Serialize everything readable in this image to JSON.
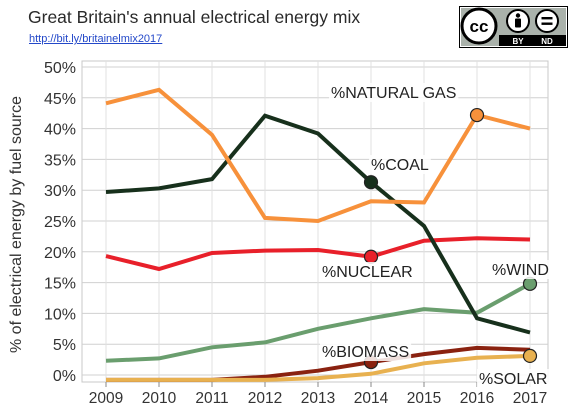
{
  "header": {
    "title": "Great Britain's annual electrical energy mix",
    "link": "http://bit.ly/britainelmix2017",
    "license_labels": [
      "cc",
      "BY",
      "ND"
    ]
  },
  "chart_data": {
    "type": "line",
    "title": "Great Britain's annual electrical energy mix",
    "ylabel": "% of electrical energy by fuel source",
    "xlabel": "",
    "x": [
      2009,
      2010,
      2011,
      2012,
      2013,
      2014,
      2015,
      2016,
      2017
    ],
    "ylim": [
      0,
      50
    ],
    "yticks": [
      "0%",
      "5%",
      "10%",
      "15%",
      "20%",
      "25%",
      "30%",
      "35%",
      "40%",
      "45%",
      "50%"
    ],
    "xticks": [
      "2009",
      "2010",
      "2011",
      "2012",
      "2013",
      "2014",
      "2015",
      "2016",
      "2017"
    ],
    "grid": true,
    "legend": "inline labels",
    "series": [
      {
        "name": "%NATURAL GAS",
        "color": "#f7913b",
        "values": [
          44.1,
          46.3,
          39.0,
          25.5,
          25.0,
          28.2,
          28.0,
          42.2,
          40.0
        ],
        "marker_index": 7
      },
      {
        "name": "%COAL",
        "color": "#17301c",
        "values": [
          29.7,
          30.3,
          31.8,
          42.1,
          39.2,
          31.3,
          24.2,
          9.2,
          6.9
        ],
        "marker_index": 5
      },
      {
        "name": "%NUCLEAR",
        "color": "#e8202a",
        "values": [
          19.3,
          17.2,
          19.8,
          20.2,
          20.3,
          19.2,
          21.8,
          22.2,
          22.0
        ],
        "marker_index": 5
      },
      {
        "name": "%WIND",
        "color": "#6a9e6e",
        "values": [
          2.3,
          2.7,
          4.5,
          5.3,
          7.5,
          9.2,
          10.7,
          10.1,
          14.8
        ],
        "marker_index": 8
      },
      {
        "name": "%BIOMASS",
        "color": "#8a2210",
        "values": [
          -0.8,
          -0.8,
          -0.8,
          -0.3,
          0.7,
          2.1,
          3.4,
          4.4,
          4.1
        ],
        "marker_index": 5
      },
      {
        "name": "%SOLAR",
        "color": "#e8b150",
        "values": [
          -0.8,
          -0.8,
          -0.8,
          -0.8,
          -0.5,
          0.2,
          1.9,
          2.8,
          3.1
        ],
        "marker_index": 8
      }
    ]
  }
}
